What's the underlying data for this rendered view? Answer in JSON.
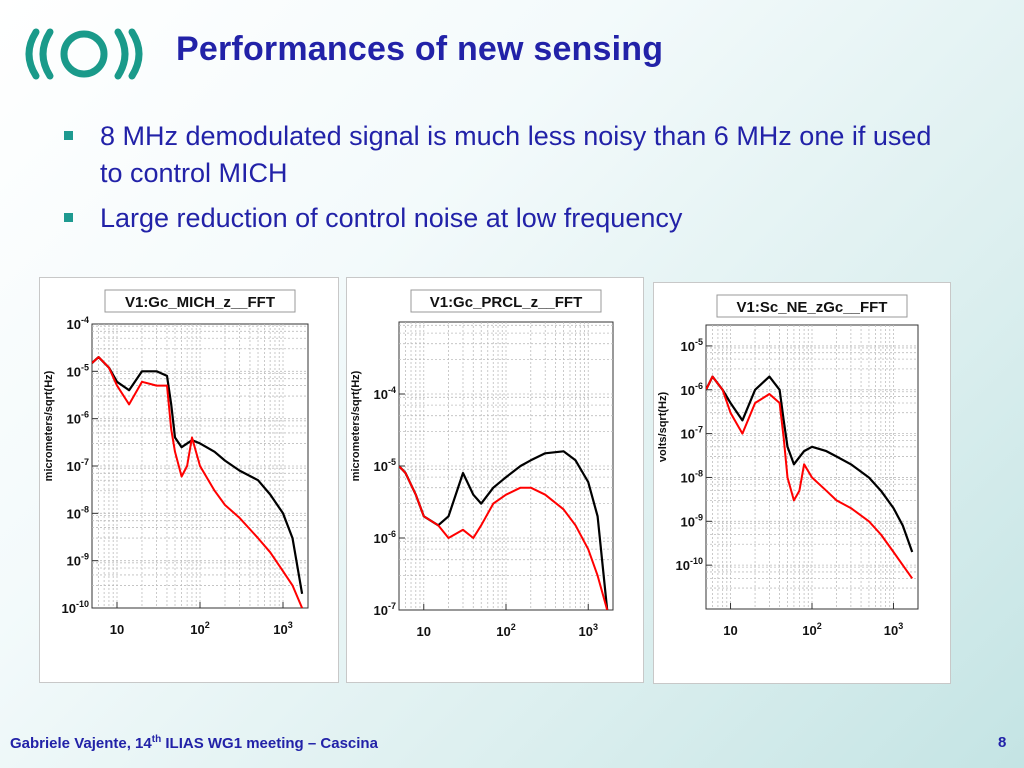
{
  "slide": {
    "title": "Performances of new sensing",
    "bullets": [
      "8 MHz demodulated signal is much less noisy than 6 MHz one if used to control MICH",
      "Large reduction of control noise at low frequency"
    ]
  },
  "footer": {
    "author": "Gabriele Vajente, 14",
    "sup": "th",
    "event": " ILIAS WG1 meeting – Cascina",
    "page": "8"
  },
  "colors": {
    "title": "#2222a8",
    "bullet": "#1e9a90",
    "logo": "#1a9a8a",
    "old_signal": "#000000",
    "new_signal": "#ff0000"
  },
  "chart_data": [
    {
      "type": "line",
      "title": "V1:Gc_MICH_z__FFT",
      "ylabel": "micrometers/sqrt(Hz)",
      "xlabel": "",
      "x_scale": "log",
      "y_scale": "log",
      "xlim": [
        5,
        2000
      ],
      "ylim": [
        1e-10,
        0.0001
      ],
      "x_ticks": [
        10,
        100,
        1000
      ],
      "x_tick_labels": [
        "10",
        "10^2",
        "10^3"
      ],
      "y_ticks": [
        0.0001,
        1e-05,
        1e-06,
        1e-07,
        1e-08,
        1e-09,
        1e-10
      ],
      "y_tick_labels": [
        "10^-4",
        "10^-5",
        "10^-6",
        "10^-7",
        "10^-8",
        "10^-9",
        "10^-10"
      ],
      "grid": true,
      "series": [
        {
          "color": "#000000",
          "x": [
            5,
            6,
            8,
            10,
            14,
            20,
            30,
            40,
            45,
            50,
            60,
            80,
            100,
            150,
            200,
            300,
            500,
            700,
            1000,
            1300,
            1700
          ],
          "y": [
            1.5e-05,
            2e-05,
            1.2e-05,
            6e-06,
            4e-06,
            1e-05,
            1e-05,
            8e-06,
            2e-06,
            4e-07,
            2.5e-07,
            3.5e-07,
            3e-07,
            2e-07,
            1.3e-07,
            8e-08,
            5e-08,
            2.5e-08,
            1e-08,
            3e-09,
            2e-10
          ]
        },
        {
          "color": "#ff0000",
          "x": [
            5,
            6,
            8,
            10,
            14,
            20,
            30,
            40,
            45,
            50,
            60,
            70,
            80,
            100,
            150,
            200,
            300,
            500,
            700,
            1000,
            1300,
            1700
          ],
          "y": [
            1.5e-05,
            2e-05,
            1.2e-05,
            5e-06,
            2e-06,
            6e-06,
            5e-06,
            5e-06,
            6e-07,
            2e-07,
            6e-08,
            1e-07,
            4e-07,
            1e-07,
            3e-08,
            1.5e-08,
            8e-09,
            3e-09,
            1.5e-09,
            6e-10,
            3e-10,
            1e-10
          ]
        }
      ]
    },
    {
      "type": "line",
      "title": "V1:Gc_PRCL_z__FFT",
      "ylabel": "micrometers/sqrt(Hz)",
      "xlabel": "",
      "x_scale": "log",
      "y_scale": "log",
      "xlim": [
        5,
        2000
      ],
      "ylim": [
        1e-07,
        0.001
      ],
      "x_ticks": [
        10,
        100,
        1000
      ],
      "x_tick_labels": [
        "10",
        "10^2",
        "10^3"
      ],
      "y_ticks": [
        0.0001,
        1e-05,
        1e-06,
        1e-07
      ],
      "y_tick_labels": [
        "10^-4",
        "10^-5",
        "10^-6",
        "10^-7"
      ],
      "grid": true,
      "series": [
        {
          "color": "#000000",
          "x": [
            5,
            6,
            8,
            10,
            15,
            20,
            30,
            40,
            50,
            70,
            100,
            150,
            200,
            300,
            500,
            700,
            1000,
            1300,
            1700
          ],
          "y": [
            1e-05,
            8e-06,
            4e-06,
            2e-06,
            1.5e-06,
            2e-06,
            8e-06,
            4e-06,
            3e-06,
            5e-06,
            7e-06,
            1e-05,
            1.2e-05,
            1.5e-05,
            1.6e-05,
            1.2e-05,
            6e-06,
            2e-06,
            1e-07
          ]
        },
        {
          "color": "#ff0000",
          "x": [
            5,
            6,
            8,
            10,
            15,
            20,
            30,
            40,
            50,
            70,
            100,
            150,
            200,
            300,
            500,
            700,
            1000,
            1300,
            1700
          ],
          "y": [
            1e-05,
            8e-06,
            4e-06,
            2e-06,
            1.5e-06,
            1e-06,
            1.3e-06,
            1e-06,
            1.5e-06,
            3e-06,
            4e-06,
            5e-06,
            5e-06,
            4e-06,
            2.5e-06,
            1.5e-06,
            7e-07,
            3e-07,
            1e-07
          ]
        }
      ]
    },
    {
      "type": "line",
      "title": "V1:Sc_NE_zGc__FFT",
      "ylabel": "volts/sqrt(Hz)",
      "xlabel": "",
      "x_scale": "log",
      "y_scale": "log",
      "xlim": [
        5,
        2000
      ],
      "ylim": [
        1e-11,
        3e-05
      ],
      "x_ticks": [
        10,
        100,
        1000
      ],
      "x_tick_labels": [
        "10",
        "10^2",
        "10^3"
      ],
      "y_ticks": [
        1e-05,
        1e-06,
        1e-07,
        1e-08,
        1e-09,
        1e-10
      ],
      "y_tick_labels": [
        "10^-5",
        "10^-6",
        "10^-7",
        "10^-8",
        "10^-9",
        "10^-10"
      ],
      "grid": true,
      "series": [
        {
          "color": "#000000",
          "x": [
            5,
            6,
            8,
            10,
            14,
            20,
            30,
            40,
            45,
            50,
            60,
            80,
            100,
            150,
            200,
            300,
            500,
            700,
            1000,
            1300,
            1700
          ],
          "y": [
            1e-06,
            2e-06,
            1e-06,
            5e-07,
            2e-07,
            1e-06,
            2e-06,
            1e-06,
            2e-07,
            5e-08,
            2e-08,
            4e-08,
            5e-08,
            4e-08,
            3e-08,
            2e-08,
            1e-08,
            5e-09,
            2e-09,
            8e-10,
            2e-10
          ]
        },
        {
          "color": "#ff0000",
          "x": [
            5,
            6,
            8,
            10,
            14,
            20,
            30,
            40,
            45,
            50,
            60,
            70,
            80,
            100,
            150,
            200,
            300,
            500,
            700,
            1000,
            1300,
            1700
          ],
          "y": [
            1e-06,
            2e-06,
            1e-06,
            3e-07,
            1e-07,
            5e-07,
            8e-07,
            5e-07,
            8e-08,
            1e-08,
            3e-09,
            5e-09,
            2e-08,
            1e-08,
            5e-09,
            3e-09,
            2e-09,
            1e-09,
            5e-10,
            2e-10,
            1e-10,
            5e-11
          ]
        }
      ]
    }
  ]
}
